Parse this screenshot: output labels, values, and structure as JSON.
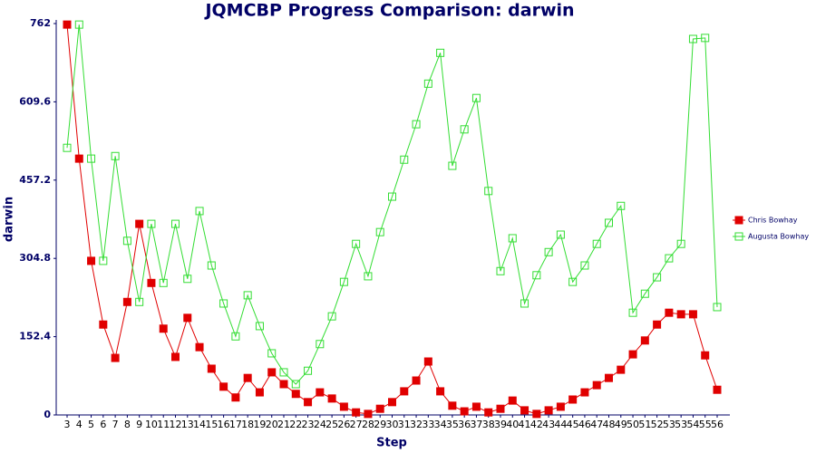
{
  "chart_data": {
    "type": "line",
    "title": "JQMCBP Progress Comparison: darwin",
    "x_label": "Step",
    "y_label": "darwin",
    "categories": [
      "3",
      "4",
      "5",
      "6",
      "7",
      "8",
      "9",
      "10",
      "11",
      "12",
      "13",
      "14",
      "15",
      "16",
      "17",
      "18",
      "19",
      "20",
      "21",
      "22",
      "23",
      "24",
      "25",
      "26",
      "27",
      "28",
      "29",
      "30",
      "31",
      "32",
      "33",
      "34",
      "35",
      "36",
      "37",
      "38",
      "39",
      "40",
      "41",
      "42",
      "43",
      "44",
      "45",
      "46",
      "47",
      "48",
      "49",
      "50",
      "51",
      "52",
      "53",
      "53",
      "54",
      "55",
      "56"
    ],
    "ylim": [
      0,
      762
    ],
    "yticks": [
      0,
      152.4,
      304.8,
      457.2,
      609.6,
      762
    ],
    "legend": "right",
    "series": [
      {
        "name": "Chris Bowhay",
        "color": "#e00000",
        "marker": "filled-square",
        "values": [
          760,
          499,
          300,
          176,
          111,
          220,
          372,
          257,
          168,
          113,
          189,
          132,
          90,
          55,
          34,
          72,
          44,
          83,
          60,
          41,
          25,
          44,
          32,
          16,
          5,
          2,
          12,
          25,
          46,
          67,
          104,
          46,
          18,
          7,
          16,
          5,
          12,
          28,
          9,
          2,
          9,
          16,
          30,
          44,
          58,
          72,
          88,
          118,
          145,
          176,
          199,
          196,
          196,
          116,
          49
        ]
      },
      {
        "name": "Augusta Bowhay",
        "color": "#33dd33",
        "marker": "open-square",
        "values": [
          520,
          760,
          499,
          300,
          504,
          339,
          220,
          372,
          257,
          372,
          265,
          397,
          291,
          217,
          153,
          233,
          173,
          120,
          83,
          60,
          86,
          138,
          192,
          259,
          333,
          270,
          356,
          425,
          497,
          566,
          645,
          705,
          485,
          556,
          617,
          436,
          280,
          344,
          217,
          272,
          317,
          351,
          259,
          291,
          333,
          374,
          407,
          199,
          236,
          268,
          305,
          333,
          732,
          734,
          210
        ]
      }
    ]
  }
}
